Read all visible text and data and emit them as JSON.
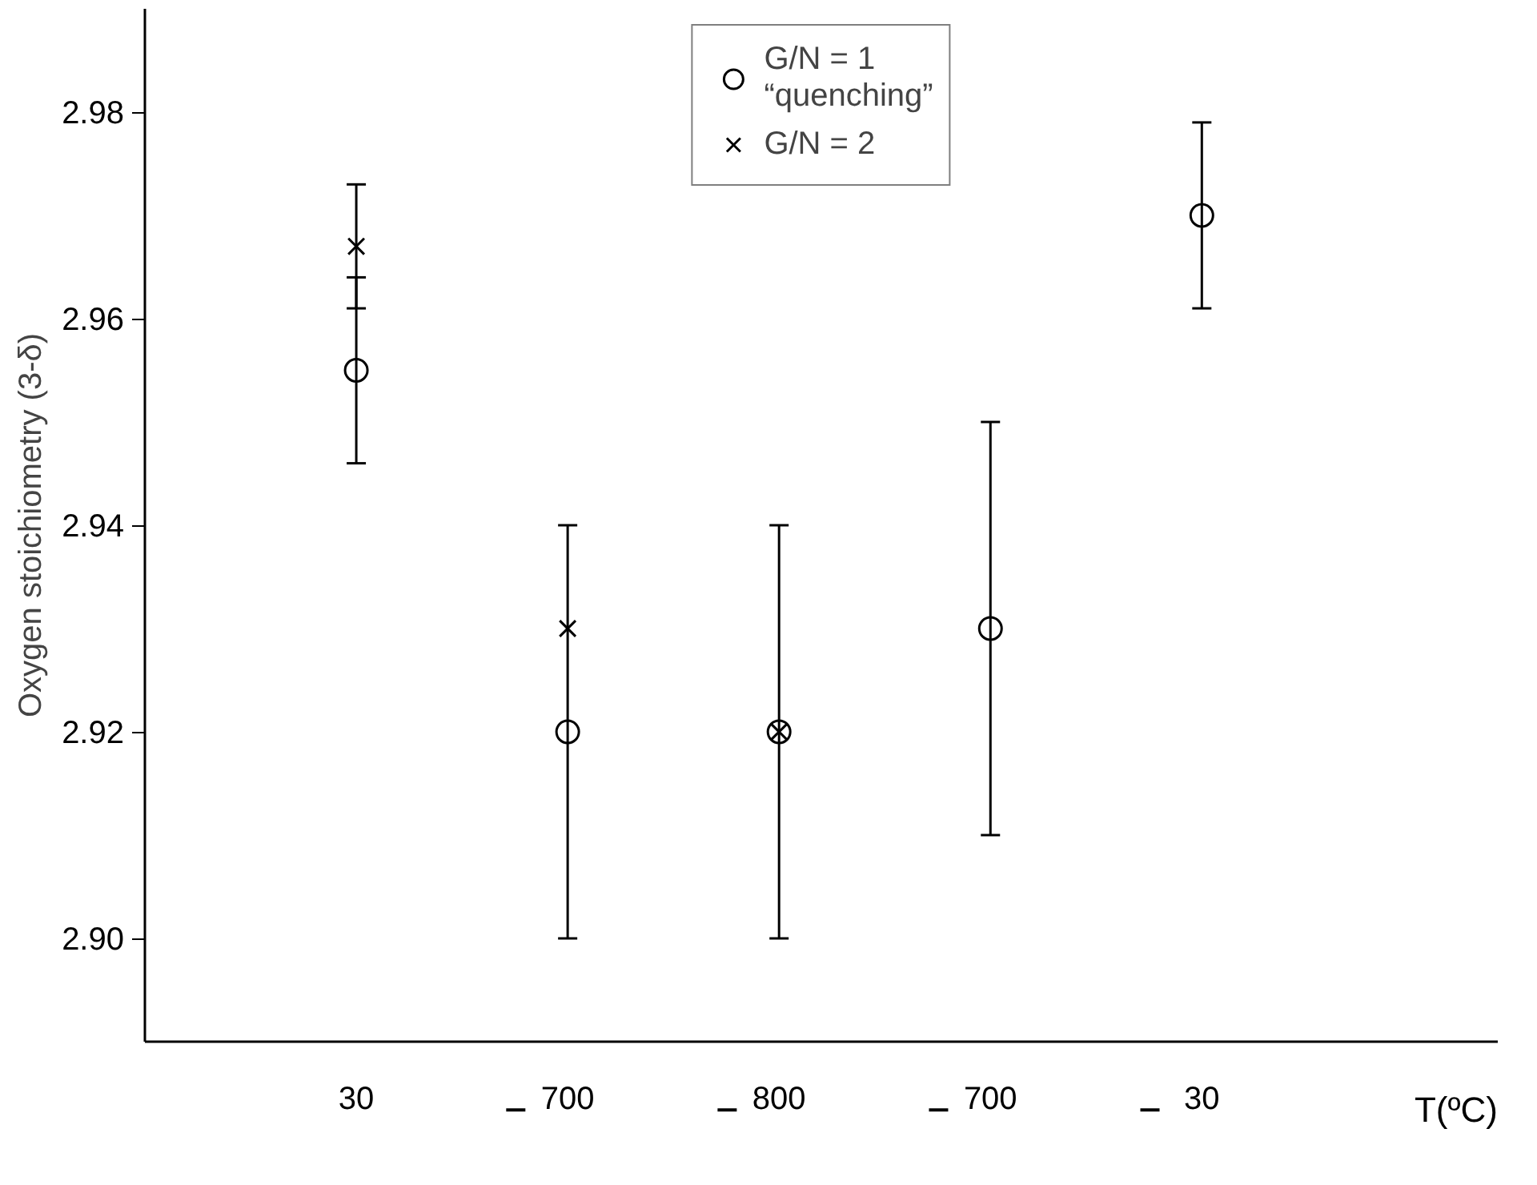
{
  "chart_data": {
    "type": "scatter",
    "xlabel": "T(ºC)",
    "ylabel": "Oxygen stoichiometry (3-δ)",
    "categories": [
      "30",
      "700",
      "800",
      "700",
      "30"
    ],
    "ylim": [
      2.89,
      2.99
    ],
    "yticks": [
      {
        "value": 2.9,
        "label": "2.90"
      },
      2.92,
      2.94,
      2.96,
      2.98
    ],
    "grid": false,
    "legend": "top",
    "series": [
      {
        "name": "G/N = 1\n“quenching”",
        "color": "#000000",
        "marker": "circle",
        "values": [
          2.955,
          2.92,
          2.92,
          2.93,
          2.97
        ],
        "errors": [
          0.009,
          0.02,
          0.02,
          0.02,
          0.009
        ]
      },
      {
        "name": "G/N = 2",
        "color": "#000000",
        "marker": "cross",
        "values": [
          2.967,
          2.93,
          2.92,
          null,
          null
        ],
        "errors": [
          0.006,
          null,
          null,
          null,
          null
        ]
      }
    ]
  }
}
